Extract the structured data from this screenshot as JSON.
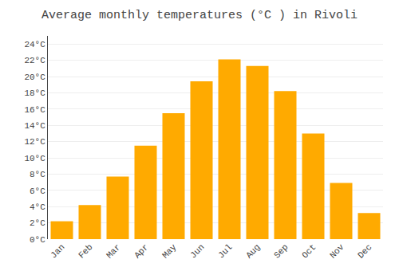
{
  "chart_data": {
    "type": "bar",
    "title": "Average monthly temperatures (°C ) in Rivoli",
    "categories": [
      "Jan",
      "Feb",
      "Mar",
      "Apr",
      "May",
      "Jun",
      "Jul",
      "Aug",
      "Sep",
      "Oct",
      "Nov",
      "Dec"
    ],
    "values": [
      2.2,
      4.2,
      7.7,
      11.5,
      15.5,
      19.4,
      22.1,
      21.3,
      18.2,
      13.0,
      6.9,
      3.2
    ],
    "color": "#FFAA00",
    "ylim": [
      0,
      25
    ],
    "yticks": [
      {
        "value": 0,
        "label": "0°C"
      },
      {
        "value": 2,
        "label": "2°C"
      },
      {
        "value": 4,
        "label": "4°C"
      },
      {
        "value": 6,
        "label": "6°C"
      },
      {
        "value": 8,
        "label": "8°C"
      },
      {
        "value": 10,
        "label": "10°C"
      },
      {
        "value": 12,
        "label": "12°C"
      },
      {
        "value": 14,
        "label": "14°C"
      },
      {
        "value": 16,
        "label": "16°C"
      },
      {
        "value": 18,
        "label": "18°C"
      },
      {
        "value": 20,
        "label": "20°C"
      },
      {
        "value": 22,
        "label": "22°C"
      },
      {
        "value": 24,
        "label": "24°C"
      }
    ],
    "grid": true
  }
}
